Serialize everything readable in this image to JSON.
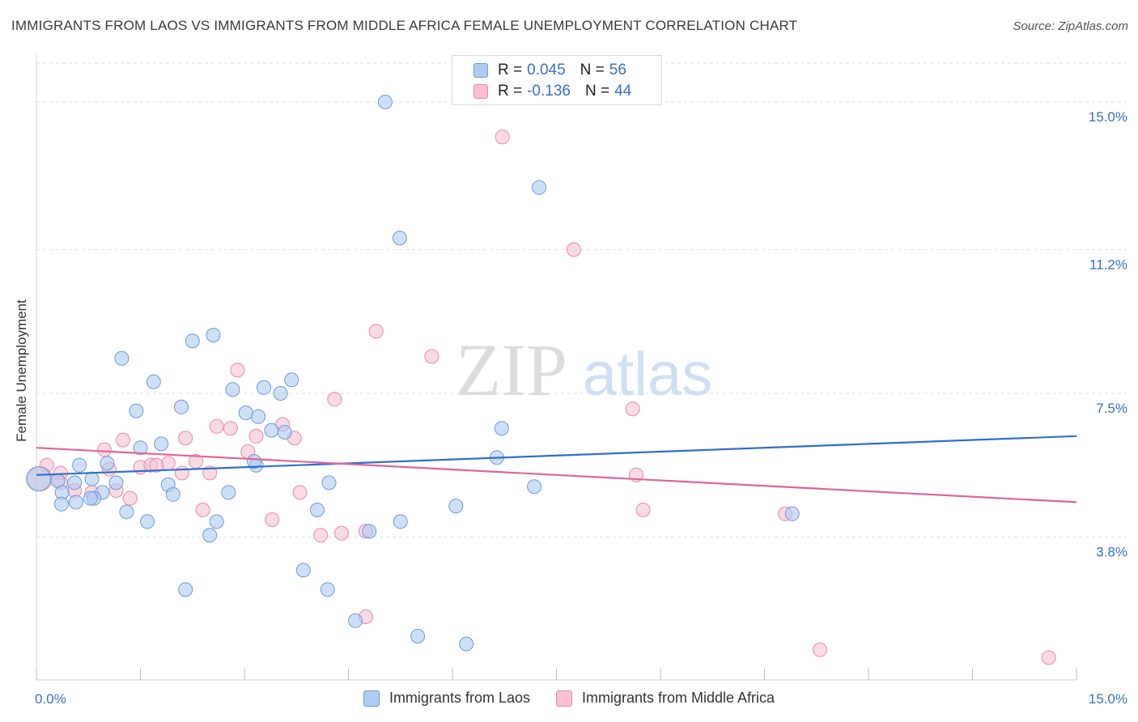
{
  "title": "IMMIGRANTS FROM LAOS VS IMMIGRANTS FROM MIDDLE AFRICA FEMALE UNEMPLOYMENT CORRELATION CHART",
  "source": "Source: ZipAtlas.com",
  "watermark": {
    "zip": "ZIP",
    "atlas": "atlas"
  },
  "colors": {
    "laos_fill": "#aecbf2",
    "laos_stroke": "#6f9ad8",
    "laos_line": "#2f6fcf",
    "africa_fill": "#f7c1d2",
    "africa_stroke": "#e98aab",
    "africa_line": "#e0649a",
    "axis_text": "#3a6fc6"
  },
  "legend": {
    "laos": {
      "r_label": "R = ",
      "r_value": "0.045",
      "n_label": "N = ",
      "n_value": "56"
    },
    "africa": {
      "r_label": "R = ",
      "r_value": "-0.136",
      "n_label": "N = ",
      "n_value": "44"
    }
  },
  "chart_data": {
    "type": "scatter",
    "title": "IMMIGRANTS FROM LAOS VS IMMIGRANTS FROM MIDDLE AFRICA FEMALE UNEMPLOYMENT CORRELATION CHART",
    "xlabel": "",
    "ylabel": "Female Unemployment",
    "xlim": [
      0,
      15
    ],
    "ylim": [
      0.5,
      16
    ],
    "x_tick_labels": [
      "0.0%",
      "15.0%"
    ],
    "y_ticks": [
      3.8,
      7.5,
      11.2,
      15.0
    ],
    "y_tick_labels": [
      "3.8%",
      "7.5%",
      "11.2%",
      "15.0%"
    ],
    "grid": true,
    "series": [
      {
        "name": "Immigrants from Laos",
        "r": 0.045,
        "n": 56,
        "trend": [
          [
            0,
            5.4
          ],
          [
            15,
            6.4
          ]
        ],
        "points": [
          [
            5.03,
            15.0
          ],
          [
            7.25,
            12.8
          ],
          [
            5.24,
            11.5
          ],
          [
            1.23,
            8.4
          ],
          [
            2.25,
            8.85
          ],
          [
            2.55,
            9.0
          ],
          [
            1.69,
            7.8
          ],
          [
            1.44,
            7.05
          ],
          [
            2.09,
            7.15
          ],
          [
            2.83,
            7.6
          ],
          [
            3.28,
            7.65
          ],
          [
            3.52,
            7.5
          ],
          [
            3.68,
            7.85
          ],
          [
            3.02,
            7.0
          ],
          [
            3.2,
            6.9
          ],
          [
            3.58,
            6.5
          ],
          [
            3.39,
            6.55
          ],
          [
            6.71,
            6.6
          ],
          [
            1.5,
            6.1
          ],
          [
            1.8,
            6.2
          ],
          [
            0.62,
            5.65
          ],
          [
            1.02,
            5.7
          ],
          [
            3.17,
            5.65
          ],
          [
            3.14,
            5.75
          ],
          [
            6.64,
            5.85
          ],
          [
            0.8,
            5.3
          ],
          [
            0.55,
            5.2
          ],
          [
            0.31,
            5.25
          ],
          [
            0.03,
            5.3
          ],
          [
            1.15,
            5.2
          ],
          [
            1.9,
            5.15
          ],
          [
            4.22,
            5.2
          ],
          [
            7.18,
            5.1
          ],
          [
            0.37,
            4.95
          ],
          [
            0.95,
            4.95
          ],
          [
            1.97,
            4.9
          ],
          [
            2.77,
            4.95
          ],
          [
            0.83,
            4.8
          ],
          [
            0.57,
            4.7
          ],
          [
            0.78,
            4.8
          ],
          [
            0.36,
            4.65
          ],
          [
            6.05,
            4.6
          ],
          [
            4.05,
            4.5
          ],
          [
            1.3,
            4.45
          ],
          [
            1.6,
            4.2
          ],
          [
            2.6,
            4.2
          ],
          [
            5.25,
            4.2
          ],
          [
            10.9,
            4.4
          ],
          [
            4.8,
            3.95
          ],
          [
            2.5,
            3.85
          ],
          [
            3.85,
            2.95
          ],
          [
            2.15,
            2.45
          ],
          [
            4.2,
            2.45
          ],
          [
            4.6,
            1.65
          ],
          [
            5.5,
            1.25
          ],
          [
            6.2,
            1.05
          ]
        ]
      },
      {
        "name": "Immigrants from Middle Africa",
        "r": -0.136,
        "n": 44,
        "trend": [
          [
            0,
            6.1
          ],
          [
            15,
            4.7
          ]
        ],
        "points": [
          [
            6.72,
            14.1
          ],
          [
            7.75,
            11.2
          ],
          [
            4.9,
            9.1
          ],
          [
            5.7,
            8.45
          ],
          [
            2.9,
            8.1
          ],
          [
            4.3,
            7.35
          ],
          [
            8.6,
            7.1
          ],
          [
            2.6,
            6.65
          ],
          [
            2.8,
            6.6
          ],
          [
            3.17,
            6.4
          ],
          [
            3.55,
            6.7
          ],
          [
            3.72,
            6.35
          ],
          [
            1.25,
            6.3
          ],
          [
            2.15,
            6.35
          ],
          [
            0.98,
            6.05
          ],
          [
            2.3,
            5.75
          ],
          [
            3.05,
            6.0
          ],
          [
            1.5,
            5.6
          ],
          [
            1.9,
            5.7
          ],
          [
            1.65,
            5.65
          ],
          [
            1.73,
            5.65
          ],
          [
            1.05,
            5.55
          ],
          [
            2.5,
            5.45
          ],
          [
            0.15,
            5.65
          ],
          [
            0.35,
            5.45
          ],
          [
            0.05,
            5.3
          ],
          [
            1.15,
            5.0
          ],
          [
            0.55,
            5.0
          ],
          [
            0.8,
            4.95
          ],
          [
            2.1,
            5.45
          ],
          [
            1.35,
            4.8
          ],
          [
            3.8,
            4.95
          ],
          [
            2.4,
            4.5
          ],
          [
            3.4,
            4.25
          ],
          [
            8.75,
            4.5
          ],
          [
            8.65,
            5.4
          ],
          [
            10.8,
            4.4
          ],
          [
            4.1,
            3.85
          ],
          [
            4.4,
            3.9
          ],
          [
            4.75,
            3.95
          ],
          [
            4.75,
            1.75
          ],
          [
            11.3,
            0.9
          ],
          [
            14.6,
            0.7
          ],
          [
            0.35,
            5.2
          ]
        ]
      }
    ]
  },
  "legend_bottom": [
    "Immigrants from Laos",
    "Immigrants from Middle Africa"
  ]
}
